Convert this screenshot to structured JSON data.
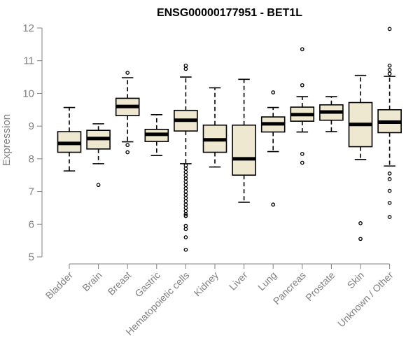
{
  "chart_data": {
    "type": "box",
    "title": "ENSG00000177951 - BET1L",
    "xlabel": "",
    "ylabel": "Expression",
    "ylim": [
      5,
      12
    ],
    "yticks": [
      5,
      6,
      7,
      8,
      9,
      10,
      11,
      12
    ],
    "grid": false,
    "box_fill": "#EEE8D0",
    "box_stroke": "#000000",
    "axis_color": "#808080",
    "categories": [
      "Bladder",
      "Brain",
      "Breast",
      "Gastric",
      "Hematopoietic cells",
      "Kidney",
      "Liver",
      "Lung",
      "Pancreas",
      "Prostate",
      "Skin",
      "Unknown / Other"
    ],
    "boxes": [
      {
        "q1": 8.2,
        "median": 8.47,
        "q3": 8.83,
        "whisker_low": 7.63,
        "whisker_high": 9.57,
        "outliers": []
      },
      {
        "q1": 8.3,
        "median": 8.62,
        "q3": 8.87,
        "whisker_low": 7.85,
        "whisker_high": 9.07,
        "outliers": [
          7.2
        ]
      },
      {
        "q1": 9.32,
        "median": 9.6,
        "q3": 9.85,
        "whisker_low": 8.52,
        "whisker_high": 10.48,
        "outliers": [
          10.63,
          8.42,
          8.2
        ]
      },
      {
        "q1": 8.53,
        "median": 8.75,
        "q3": 8.9,
        "whisker_low": 8.1,
        "whisker_high": 9.35,
        "outliers": []
      },
      {
        "q1": 8.85,
        "median": 9.18,
        "q3": 9.48,
        "whisker_low": 7.85,
        "whisker_high": 10.5,
        "outliers": [
          10.85,
          10.75,
          7.8,
          7.7,
          7.6,
          7.5,
          7.4,
          7.3,
          7.2,
          7.1,
          7.0,
          6.9,
          6.8,
          6.7,
          6.6,
          6.5,
          6.4,
          6.3,
          6.25,
          5.95,
          5.85,
          5.6,
          5.22
        ]
      },
      {
        "q1": 8.2,
        "median": 8.58,
        "q3": 9.03,
        "whisker_low": 7.75,
        "whisker_high": 10.17,
        "outliers": []
      },
      {
        "q1": 7.5,
        "median": 8.0,
        "q3": 9.03,
        "whisker_low": 6.67,
        "whisker_high": 10.43,
        "outliers": []
      },
      {
        "q1": 8.82,
        "median": 9.07,
        "q3": 9.28,
        "whisker_low": 8.22,
        "whisker_high": 9.57,
        "outliers": [
          10.03,
          6.6
        ]
      },
      {
        "q1": 9.15,
        "median": 9.35,
        "q3": 9.58,
        "whisker_low": 8.82,
        "whisker_high": 9.9,
        "outliers": [
          11.35,
          10.25,
          8.15,
          7.88
        ]
      },
      {
        "q1": 9.18,
        "median": 9.43,
        "q3": 9.65,
        "whisker_low": 8.83,
        "whisker_high": 9.9,
        "outliers": []
      },
      {
        "q1": 8.37,
        "median": 9.05,
        "q3": 9.72,
        "whisker_low": 7.98,
        "whisker_high": 10.55,
        "outliers": [
          6.03,
          5.55
        ]
      },
      {
        "q1": 8.8,
        "median": 9.12,
        "q3": 9.5,
        "whisker_low": 7.78,
        "whisker_high": 10.52,
        "outliers": [
          11.97,
          10.85,
          10.72,
          10.6,
          7.55,
          7.38,
          7.02,
          6.65,
          6.22
        ]
      }
    ]
  }
}
